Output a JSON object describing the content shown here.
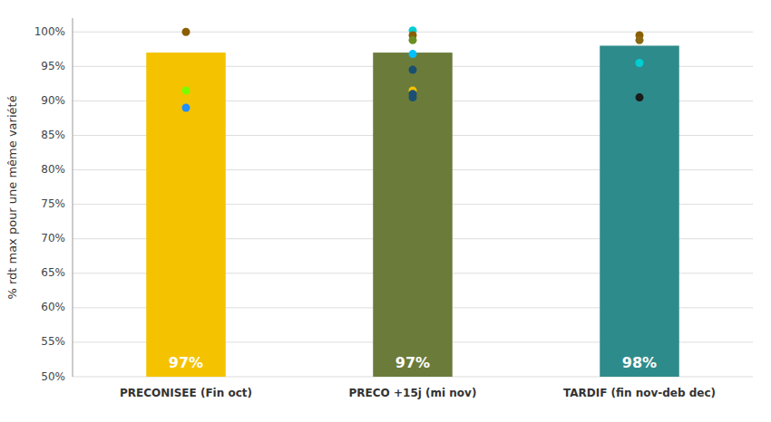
{
  "chart_data": {
    "type": "bar",
    "categories": [
      "PRECONISEE (Fin oct)",
      "PRECO +15j (mi nov)",
      "TARDIF (fin nov-deb dec)"
    ],
    "values": [
      97,
      97,
      98
    ],
    "colors": [
      "#F5C200",
      "#6B7B3A",
      "#2E8B8B"
    ],
    "data_labels": true,
    "value_labels": [
      "97%",
      "97%",
      "98%"
    ],
    "ylabel": "% rdt max pour une même variété",
    "ylim": [
      50,
      102
    ],
    "yticks": [
      {
        "value": 50,
        "label": "50%"
      },
      {
        "value": 55,
        "label": "55%"
      },
      {
        "value": 60,
        "label": "60%"
      },
      {
        "value": 65,
        "label": "65%"
      },
      {
        "value": 70,
        "label": "70%"
      },
      {
        "value": 75,
        "label": "75%"
      },
      {
        "value": 80,
        "label": "80%"
      },
      {
        "value": 85,
        "label": "85%"
      },
      {
        "value": 90,
        "label": "90%"
      },
      {
        "value": 95,
        "label": "95%"
      },
      {
        "value": 100,
        "label": "100%"
      }
    ],
    "grid": true,
    "dots": [
      {
        "values": [
          100.0,
          91.5,
          89.0
        ],
        "colors": [
          "#8B5E00",
          "#7CFC00",
          "#1E90FF"
        ]
      },
      {
        "values": [
          100.2,
          99.5,
          98.8,
          96.8,
          94.5,
          91.5,
          91.0,
          90.5
        ],
        "colors": [
          "#00CED1",
          "#8B5E00",
          "#6B8E23",
          "#00BFFF",
          "#1B4F72",
          "#F5C200",
          "#1B4F72",
          "#1B4F72"
        ]
      },
      {
        "values": [
          99.5,
          98.8,
          95.5,
          90.5
        ],
        "colors": [
          "#8B5E00",
          "#8B6914",
          "#00CED1",
          "#1B1B1B"
        ]
      }
    ]
  }
}
